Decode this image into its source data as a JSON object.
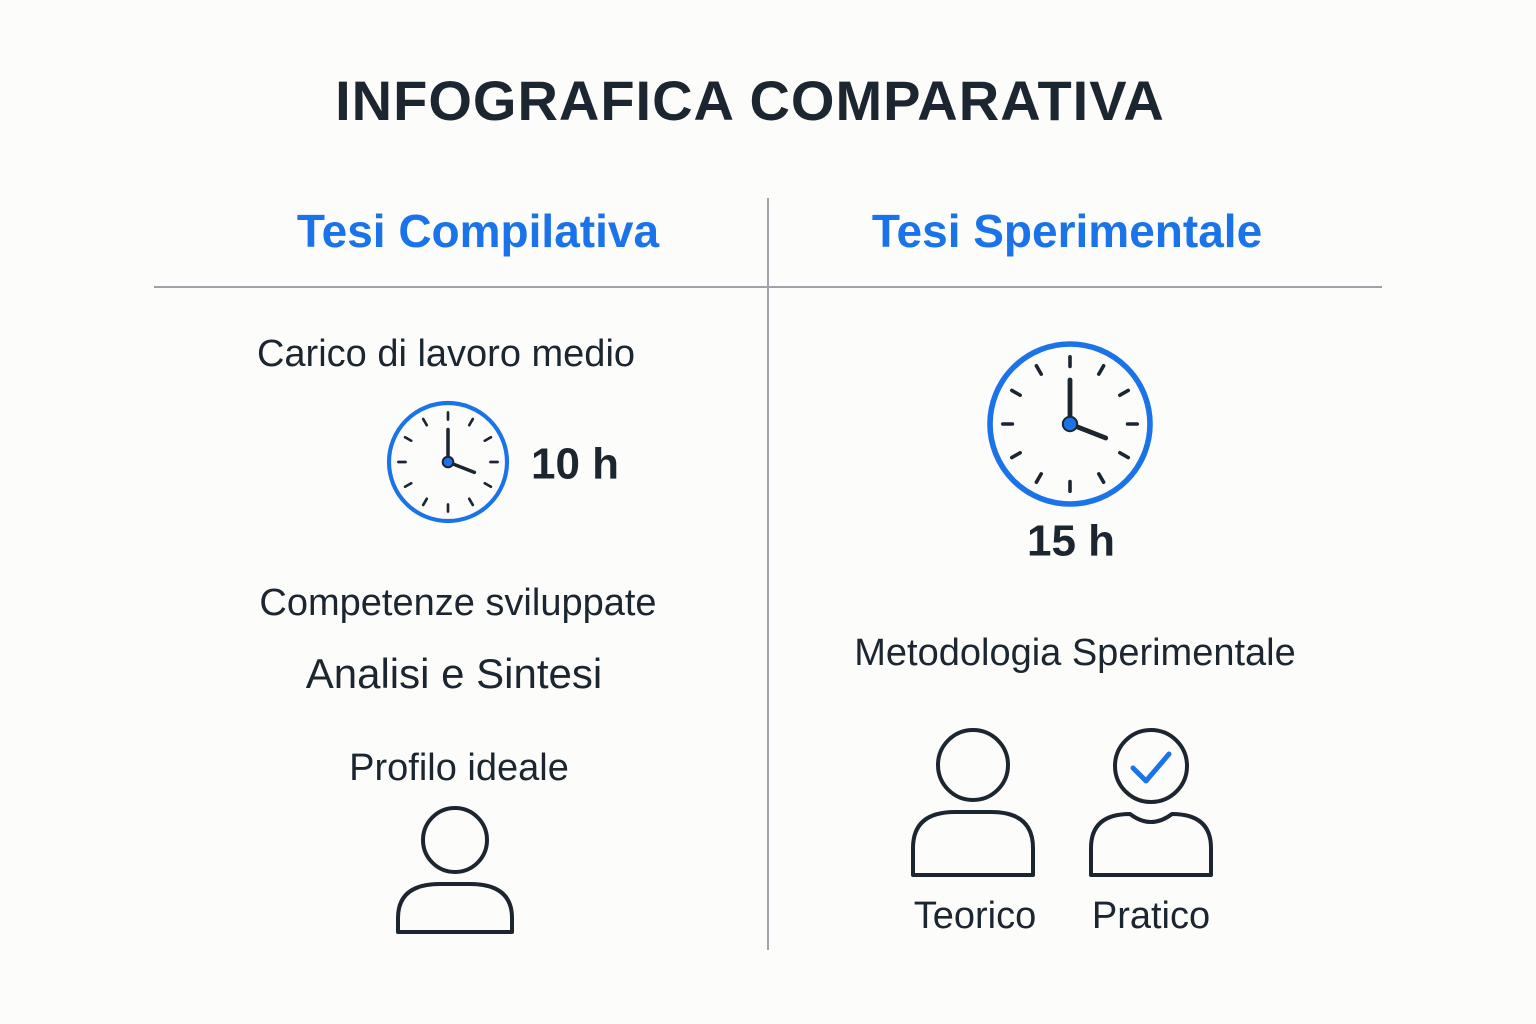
{
  "title": "INFOGRAFICA COMPARATIVA",
  "left": {
    "heading": "Tesi Compilativa",
    "workload_label": "Carico di lavoro medio",
    "workload": "10 h",
    "skills_label": "Competenze sviluppate",
    "skills": "Analisi e Sintesi",
    "profile_label": "Profilo ideale"
  },
  "right": {
    "heading": "Tesi Sperimentale",
    "workload": "15 h",
    "method_label": "Metodologia Sperimentale",
    "profiles": [
      "Teorico",
      "Pratico"
    ]
  }
}
